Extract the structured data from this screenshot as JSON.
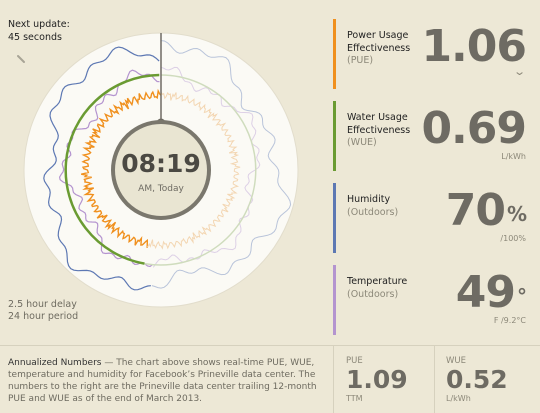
{
  "next_update": {
    "label": "Next update:",
    "value": "45 seconds"
  },
  "clock": {
    "time": "08:19",
    "period": "AM, Today"
  },
  "delay": {
    "line1": "2.5 hour delay",
    "line2": "24 hour period"
  },
  "metrics": [
    {
      "title": "Power Usage Effectiveness",
      "sub": "(PUE)",
      "value": "1.06",
      "unit": "",
      "color": "#f0901e",
      "expand": "chevron-down"
    },
    {
      "title": "Water Usage Effectiveness",
      "sub": "(WUE)",
      "value": "0.69",
      "unit": "L/kWh",
      "color": "#6a9b32",
      "expand": "chevron-down"
    },
    {
      "title": "Humidity",
      "sub": "(Outdoors)",
      "value": "70",
      "suffix": "%",
      "unit": "/100%",
      "color": "#5d78b3"
    },
    {
      "title": "Temperature",
      "sub": "(Outdoors)",
      "value": "49",
      "suffix": "°",
      "unit": "F /9.2°C",
      "color": "#b494cf",
      "expand": "chevron-down"
    }
  ],
  "annual": {
    "lead": "Annualized Numbers",
    "text": " — The chart above shows real-time PUE, WUE, temperature and humidity for Facebook’s Prineville data center. The numbers to the right are the Prineville data center trailing 12-month PUE and WUE as of the end of March 2013."
  },
  "ttm": {
    "pue": {
      "label": "PUE",
      "value": "1.09",
      "unit": "TTM"
    },
    "wue": {
      "label": "WUE",
      "value": "0.52",
      "unit": "L/kWh"
    }
  },
  "icons": {
    "refresh": "refresh-icon",
    "chevron": "chevron-down-icon"
  }
}
